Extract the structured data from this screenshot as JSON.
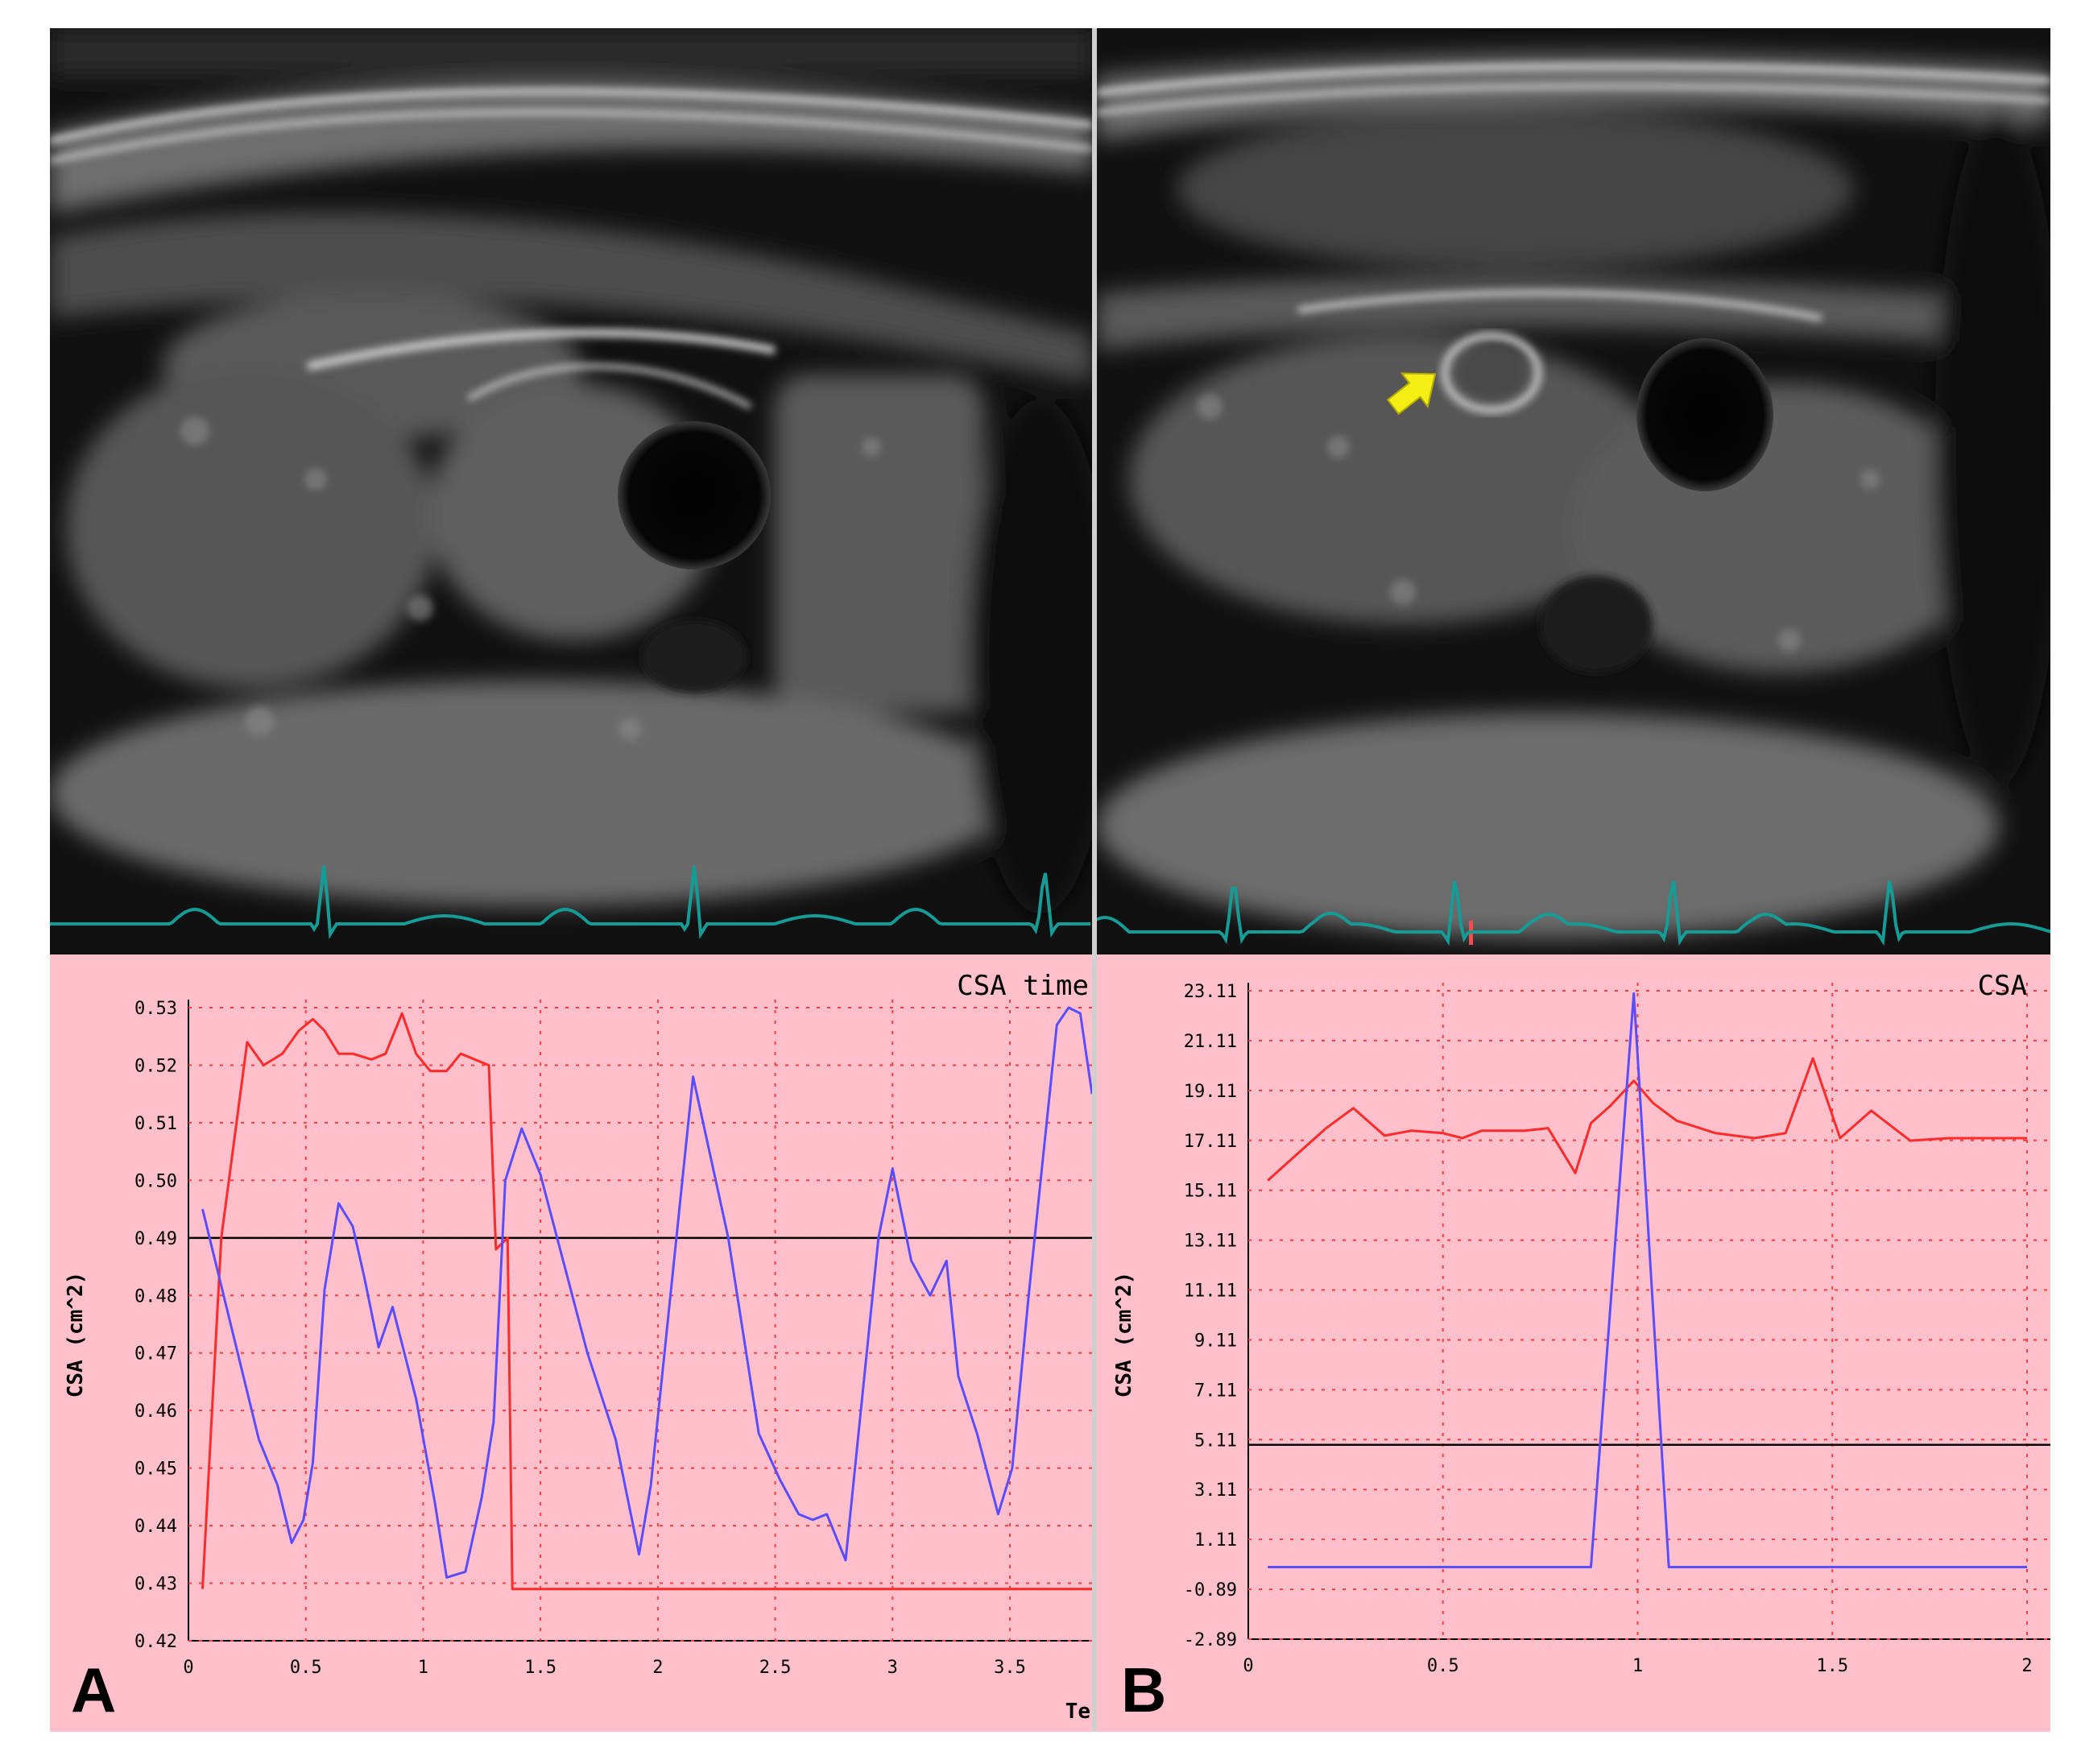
{
  "colors": {
    "chart_bg": "#ffc0cb",
    "grid": "#ff3b3b",
    "red_series": "#ff2a2a",
    "blue_series": "#5a4cff",
    "baseline": "#000000",
    "ecg": "#159c96",
    "arrow": "#f5ee14"
  },
  "panels": [
    {
      "letter": "A"
    },
    {
      "letter": "B"
    }
  ],
  "annotations": {
    "arrow_icon": "arrow-up-right-icon"
  },
  "chart_data": [
    {
      "type": "line",
      "title": "CSA time",
      "ylabel": "CSA (cm^2)",
      "xlabel": "Te",
      "ylim": [
        0.42,
        0.53
      ],
      "xlim": [
        0,
        3.85
      ],
      "yticks": [
        "0.42",
        "0.43",
        "0.44",
        "0.45",
        "0.46",
        "0.47",
        "0.48",
        "0.49",
        "0.50",
        "0.51",
        "0.52",
        "0.53"
      ],
      "xticks": [
        "0",
        "0.5",
        "1",
        "1.5",
        "2",
        "2.5",
        "3",
        "3.5"
      ],
      "reference_line": 0.49,
      "series": [
        {
          "color": "red",
          "x": [
            0.06,
            0.14,
            0.25,
            0.32,
            0.4,
            0.47,
            0.53,
            0.58,
            0.64,
            0.7,
            0.78,
            0.84,
            0.91,
            0.97,
            1.03,
            1.1,
            1.16,
            1.22,
            1.28,
            1.31,
            1.36,
            1.38,
            3.85
          ],
          "y": [
            0.429,
            0.49,
            0.524,
            0.52,
            0.522,
            0.526,
            0.528,
            0.526,
            0.522,
            0.522,
            0.521,
            0.522,
            0.529,
            0.522,
            0.519,
            0.519,
            0.522,
            0.521,
            0.52,
            0.488,
            0.49,
            0.429,
            0.429
          ]
        },
        {
          "color": "blue",
          "x": [
            0.06,
            0.15,
            0.24,
            0.3,
            0.38,
            0.44,
            0.49,
            0.53,
            0.58,
            0.64,
            0.7,
            0.75,
            0.81,
            0.87,
            0.97,
            1.05,
            1.1,
            1.18,
            1.25,
            1.3,
            1.35,
            1.42,
            1.5,
            1.7,
            1.82,
            1.92,
            1.97,
            2.15,
            2.3,
            2.43,
            2.52,
            2.6,
            2.66,
            2.72,
            2.8,
            2.94,
            3.0,
            3.08,
            3.16,
            3.23,
            3.28,
            3.36,
            3.45,
            3.51,
            3.58,
            3.7,
            3.75,
            3.8,
            3.85
          ],
          "y": [
            0.495,
            0.48,
            0.465,
            0.455,
            0.447,
            0.437,
            0.441,
            0.451,
            0.481,
            0.496,
            0.492,
            0.483,
            0.471,
            0.478,
            0.462,
            0.444,
            0.431,
            0.432,
            0.445,
            0.458,
            0.5,
            0.509,
            0.501,
            0.47,
            0.455,
            0.435,
            0.447,
            0.518,
            0.49,
            0.456,
            0.448,
            0.442,
            0.441,
            0.442,
            0.434,
            0.49,
            0.502,
            0.486,
            0.48,
            0.486,
            0.466,
            0.456,
            0.442,
            0.45,
            0.48,
            0.527,
            0.53,
            0.529,
            0.515
          ]
        }
      ]
    },
    {
      "type": "line",
      "title": "CSA",
      "ylabel": "CSA (cm^2)",
      "ylim": [
        -2.89,
        23.11
      ],
      "xlim": [
        0,
        2.0
      ],
      "yticks": [
        "23.11",
        "21.11",
        "19.11",
        "17.11",
        "15.11",
        "13.11",
        "11.11",
        "9.11",
        "7.11",
        "5.11",
        "3.11",
        "1.11",
        "-0.89",
        "-2.89"
      ],
      "xticks": [
        "0",
        "0.5",
        "1",
        "1.5",
        "2"
      ],
      "reference_line": 4.9,
      "series": [
        {
          "color": "red",
          "x": [
            0.05,
            0.1,
            0.2,
            0.27,
            0.35,
            0.42,
            0.5,
            0.55,
            0.6,
            0.65,
            0.71,
            0.77,
            0.84,
            0.88,
            0.93,
            0.99,
            1.04,
            1.1,
            1.2,
            1.3,
            1.38,
            1.45,
            1.52,
            1.6,
            1.7,
            1.8,
            2.0
          ],
          "y": [
            15.5,
            16.2,
            17.6,
            18.4,
            17.3,
            17.5,
            17.4,
            17.2,
            17.5,
            17.5,
            17.5,
            17.6,
            15.8,
            17.8,
            18.5,
            19.5,
            18.6,
            17.9,
            17.4,
            17.2,
            17.4,
            20.4,
            17.2,
            18.3,
            17.1,
            17.2,
            17.2
          ]
        },
        {
          "color": "blue",
          "x": [
            0.05,
            0.88,
            0.99,
            1.08,
            2.0
          ],
          "y": [
            0.0,
            0.0,
            23.0,
            0.0,
            0.0
          ]
        }
      ]
    }
  ]
}
